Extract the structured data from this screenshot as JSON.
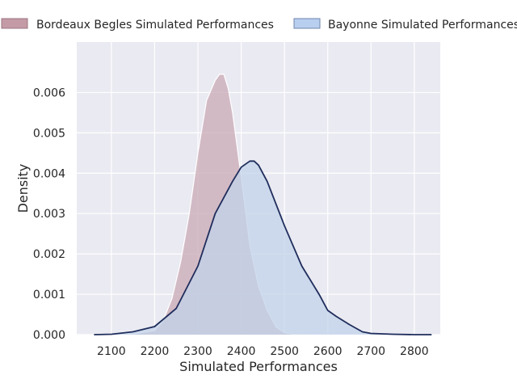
{
  "chart_data": {
    "type": "area",
    "xlabel": "Simulated Performances",
    "ylabel": "Density",
    "xlim": [
      2020,
      2860
    ],
    "ylim": [
      0,
      0.00725
    ],
    "x_ticks": [
      2100,
      2200,
      2300,
      2400,
      2500,
      2600,
      2700,
      2800
    ],
    "y_ticks": [
      0.0,
      0.001,
      0.002,
      0.003,
      0.004,
      0.005,
      0.006
    ],
    "y_tick_labels": [
      "0.000",
      "0.001",
      "0.002",
      "0.003",
      "0.004",
      "0.005",
      "0.006"
    ],
    "grid": true,
    "legend_position": "top",
    "series": [
      {
        "name": "Bordeaux Begles Simulated Performances",
        "fill": "#c9aab5",
        "fill_opacity": 0.75,
        "stroke": "#ffffff",
        "legend_fill": "#c39aa5",
        "legend_stroke": "#9d7683",
        "x": [
          2100,
          2150,
          2200,
          2220,
          2240,
          2260,
          2280,
          2300,
          2320,
          2340,
          2350,
          2360,
          2370,
          2380,
          2400,
          2420,
          2440,
          2460,
          2480,
          2500,
          2520,
          2550
        ],
        "y": [
          0.0,
          2e-05,
          0.0001,
          0.00035,
          0.0009,
          0.0018,
          0.003,
          0.0045,
          0.0058,
          0.0063,
          0.00645,
          0.00645,
          0.0061,
          0.0055,
          0.0039,
          0.0022,
          0.0012,
          0.0006,
          0.0002,
          5e-05,
          1e-05,
          0.0
        ]
      },
      {
        "name": "Bayonne Simulated Performances",
        "fill": "#c2d3ea",
        "fill_opacity": 0.75,
        "stroke": "#1f2d5c",
        "legend_fill": "#b9cff0",
        "legend_stroke": "#6f85ad",
        "x": [
          2060,
          2100,
          2150,
          2200,
          2250,
          2300,
          2340,
          2380,
          2400,
          2420,
          2430,
          2440,
          2460,
          2500,
          2540,
          2580,
          2600,
          2620,
          2650,
          2680,
          2700,
          2750,
          2800,
          2840
        ],
        "y": [
          0.0,
          1e-05,
          7e-05,
          0.0002,
          0.00065,
          0.0017,
          0.003,
          0.0038,
          0.00415,
          0.0043,
          0.0043,
          0.0042,
          0.0038,
          0.0027,
          0.0017,
          0.001,
          0.0006,
          0.00045,
          0.00025,
          7e-05,
          3e-05,
          1e-05,
          0.0,
          0.0
        ]
      }
    ]
  }
}
